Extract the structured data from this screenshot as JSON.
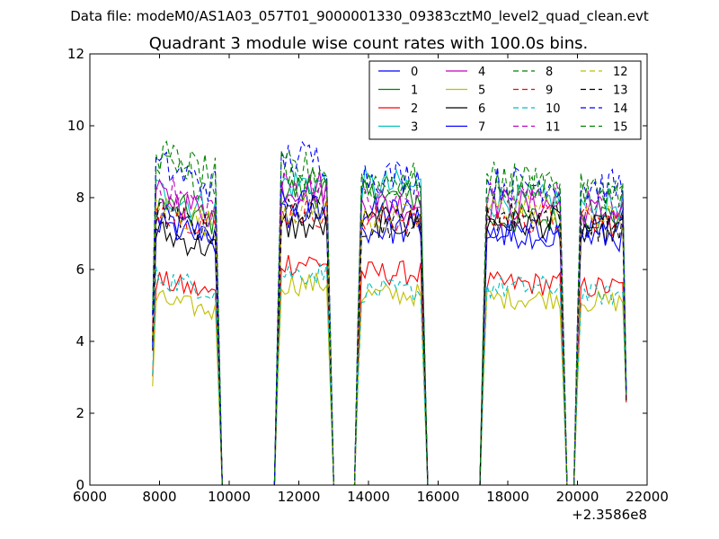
{
  "chart_data": {
    "type": "line",
    "suptitle": "Data file: modeM0/AS1A03_057T01_9000001330_09383cztM0_level2_quad_clean.evt",
    "title": "Quadrant 3 module wise count rates with 100.0s bins.",
    "xlabel": "",
    "ylabel": "",
    "xlim": [
      6000,
      22000
    ],
    "ylim": [
      0,
      12
    ],
    "x_offset_label": "+2.3586e8",
    "xticks": [
      6000,
      8000,
      10000,
      12000,
      14000,
      16000,
      18000,
      20000,
      22000
    ],
    "yticks": [
      0,
      2,
      4,
      6,
      8,
      10,
      12
    ],
    "legend_position": "top-right",
    "bin_seconds": 100,
    "segments": [
      {
        "start": 7800,
        "end": 9700
      },
      {
        "start": 11400,
        "end": 12900
      },
      {
        "start": 13700,
        "end": 15600
      },
      {
        "start": 17300,
        "end": 19600
      },
      {
        "start": 20000,
        "end": 21400
      }
    ],
    "series": [
      {
        "name": "0",
        "color": "#0000ff",
        "dash": "solid",
        "levels": [
          7.2,
          7.5,
          7.6,
          7.0,
          7.3
        ]
      },
      {
        "name": "1",
        "color": "#008000",
        "dash": "solid",
        "levels": [
          7.6,
          8.2,
          8.0,
          7.4,
          7.5
        ]
      },
      {
        "name": "2",
        "color": "#ff0000",
        "dash": "solid",
        "levels": [
          5.5,
          6.2,
          5.9,
          5.6,
          5.5
        ]
      },
      {
        "name": "3",
        "color": "#00bfbf",
        "dash": "solid",
        "levels": [
          7.9,
          8.4,
          8.3,
          7.9,
          7.8
        ]
      },
      {
        "name": "4",
        "color": "#bf00bf",
        "dash": "solid",
        "levels": [
          7.8,
          8.3,
          7.8,
          7.8,
          7.6
        ]
      },
      {
        "name": "5",
        "color": "#bfbf00",
        "dash": "solid",
        "levels": [
          5.0,
          5.6,
          5.3,
          5.2,
          5.1
        ]
      },
      {
        "name": "6",
        "color": "#000000",
        "dash": "solid",
        "levels": [
          6.8,
          7.2,
          7.3,
          7.3,
          7.1
        ]
      },
      {
        "name": "7",
        "color": "#0000ff",
        "dash": "solid",
        "levels": [
          7.0,
          7.8,
          7.1,
          7.0,
          6.9
        ]
      },
      {
        "name": "8",
        "color": "#008000",
        "dash": "dashed",
        "levels": [
          8.6,
          8.6,
          8.3,
          8.3,
          8.1
        ]
      },
      {
        "name": "9",
        "color": "#ff0000",
        "dash": "dashed",
        "levels": [
          7.5,
          7.6,
          7.4,
          7.4,
          7.3
        ]
      },
      {
        "name": "10",
        "color": "#00bfbf",
        "dash": "dashed",
        "levels": [
          5.6,
          5.9,
          5.4,
          5.5,
          5.3
        ]
      },
      {
        "name": "11",
        "color": "#bf00bf",
        "dash": "dashed",
        "levels": [
          8.0,
          8.3,
          7.9,
          8.0,
          7.8
        ]
      },
      {
        "name": "12",
        "color": "#bfbf00",
        "dash": "dashed",
        "levels": [
          7.5,
          7.7,
          7.4,
          7.7,
          7.4
        ]
      },
      {
        "name": "13",
        "color": "#000000",
        "dash": "dashed",
        "levels": [
          7.3,
          7.6,
          7.3,
          7.5,
          7.2
        ]
      },
      {
        "name": "14",
        "color": "#0000ff",
        "dash": "dashed",
        "levels": [
          8.6,
          9.1,
          8.6,
          8.4,
          8.3
        ]
      },
      {
        "name": "15",
        "color": "#008000",
        "dash": "dashed",
        "levels": [
          8.9,
          8.8,
          8.5,
          8.5,
          8.2
        ]
      }
    ]
  }
}
